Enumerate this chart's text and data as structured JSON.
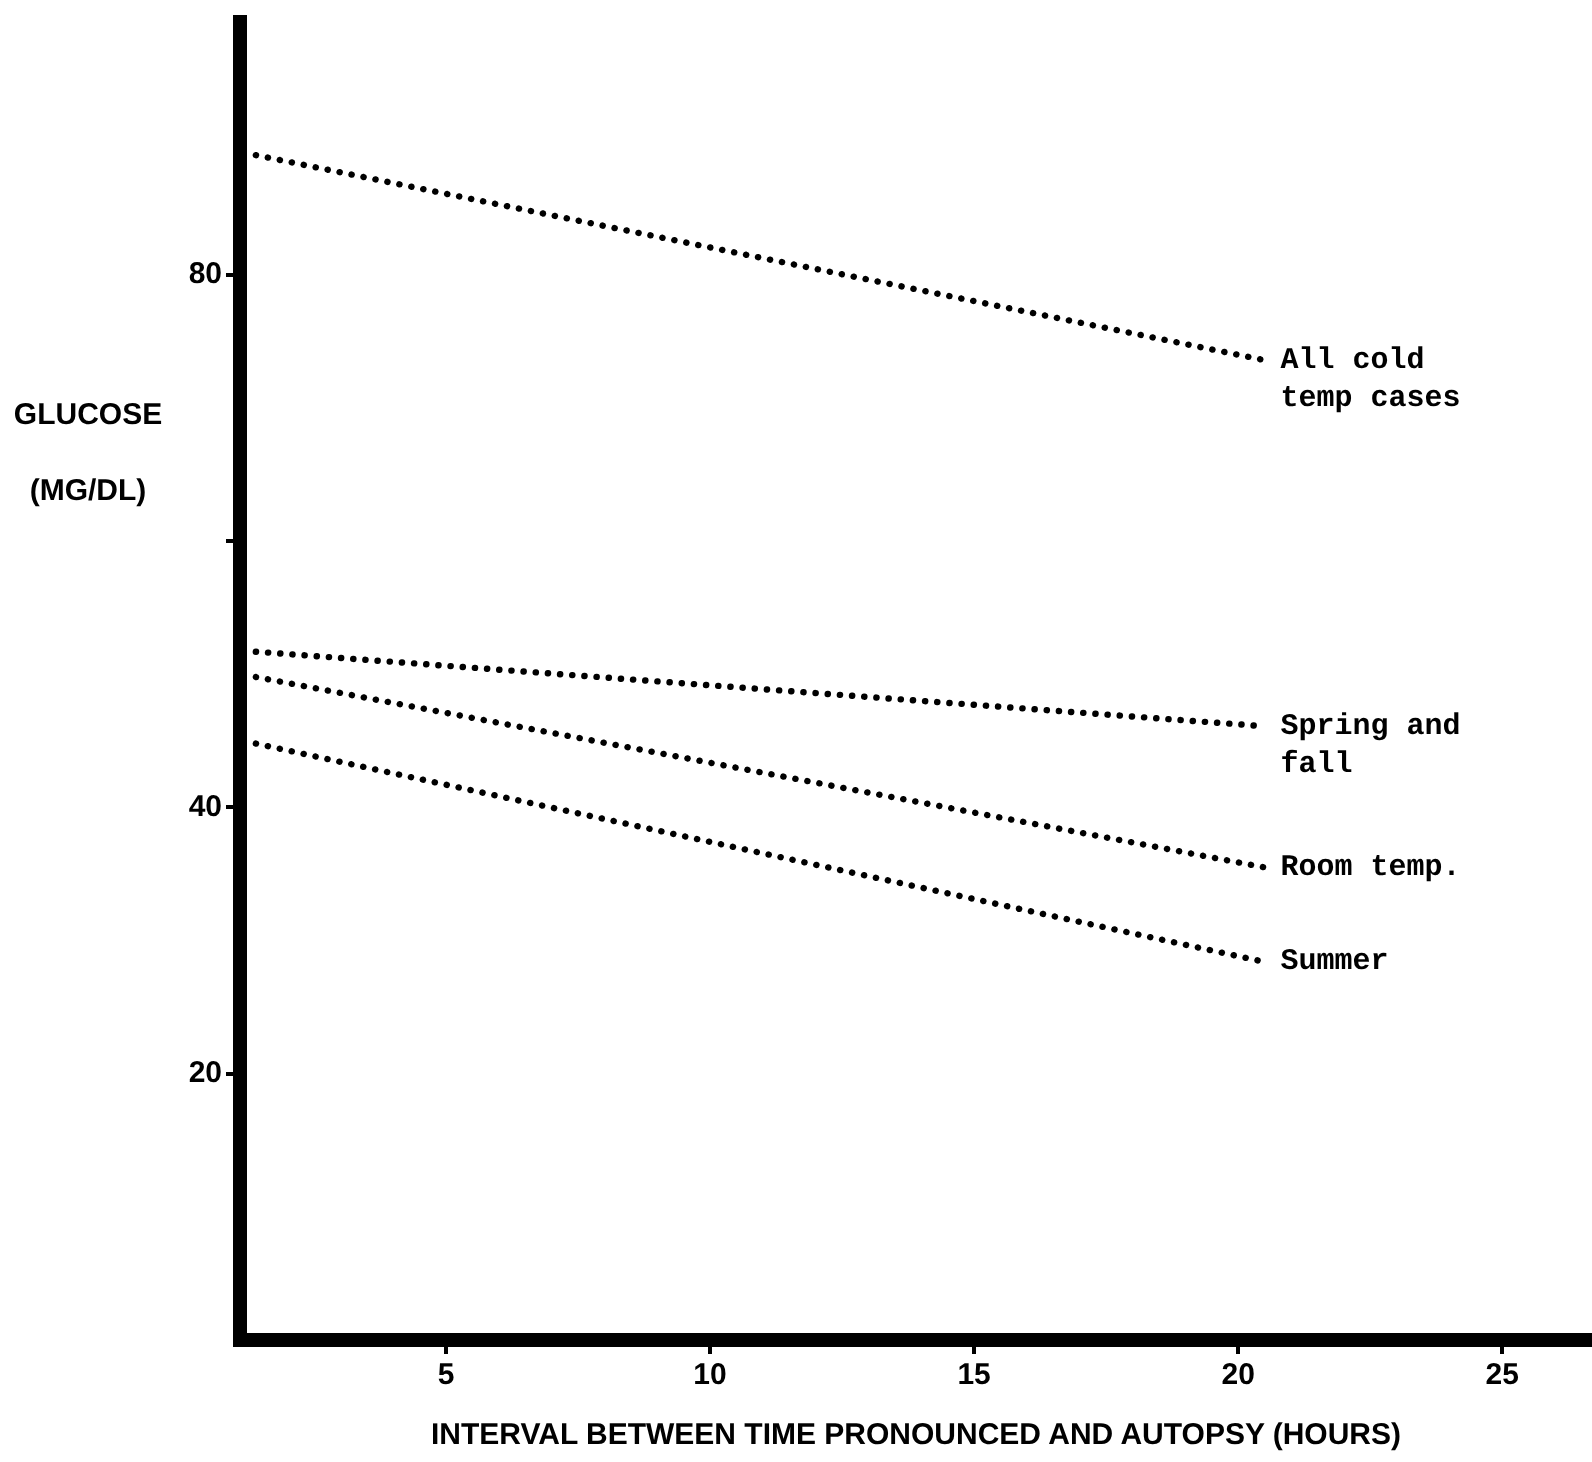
{
  "chart_data": {
    "type": "line",
    "xlabel": "INTERVAL BETWEEN TIME PRONOUNCED AND AUTOPSY (HOURS)",
    "ylabel": "GLUCOSE (MG/DL)",
    "xlim": [
      1.1,
      26.7
    ],
    "xticks": [
      5,
      10,
      15,
      20,
      25
    ],
    "ylim": [
      0,
      99
    ],
    "yticks": [
      20,
      {
        "value": 60,
        "label": null
      },
      40,
      80
    ],
    "grid": false,
    "legend": false,
    "marker": "none",
    "line_style": "dotted",
    "x": [
      1.4,
      20.5
    ],
    "series": [
      {
        "name": "All cold temp cases",
        "color": "#000000",
        "values": [
          89.0,
          73.6
        ]
      },
      {
        "name": "Spring and fall",
        "color": "#000000",
        "values": [
          51.7,
          46.1
        ]
      },
      {
        "name": "Room temp.",
        "color": "#000000",
        "values": [
          49.8,
          35.5
        ]
      },
      {
        "name": "Summer",
        "color": "#000000",
        "values": [
          44.8,
          28.4
        ]
      }
    ]
  }
}
